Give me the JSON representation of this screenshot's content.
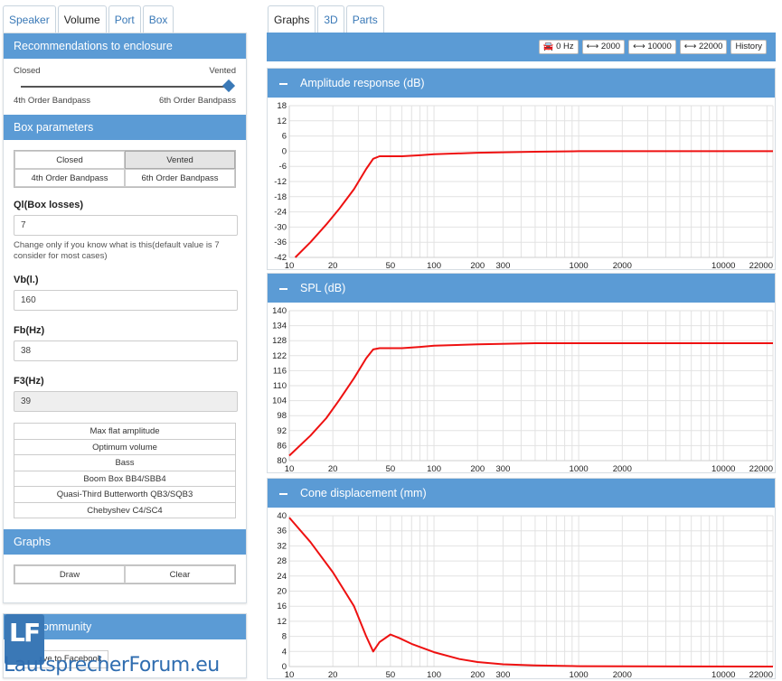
{
  "left_tabs": [
    "Speaker",
    "Volume",
    "Port",
    "Box"
  ],
  "right_tabs": [
    "Graphs",
    "3D",
    "Parts"
  ],
  "recommendations": {
    "title": "Recommendations to enclosure",
    "left_top": "Closed",
    "right_top": "Vented",
    "left_bottom": "4th Order Bandpass",
    "right_bottom": "6th Order Bandpass"
  },
  "box_parameters": {
    "title": "Box parameters",
    "types": [
      "Closed",
      "Vented",
      "4th Order Bandpass",
      "6th Order Bandpass"
    ],
    "selected": "Vented",
    "ql_label": "Ql(Box losses)",
    "ql_value": "7",
    "ql_help": "Change only if you know what is this(default value is 7 consider for most cases)",
    "vb_label": "Vb(l.)",
    "vb_value": "160",
    "fb_label": "Fb(Hz)",
    "fb_value": "38",
    "f3_label": "F3(Hz)",
    "f3_value": "39",
    "alignments": [
      "Max flat amplitude",
      "Optimum volume",
      "Bass",
      "Boom Box BB4/SBB4",
      "Quasi-Third Butterworth QB3/SQB3",
      "Chebyshev C4/SC4"
    ]
  },
  "graphs_panel": {
    "title": "Graphs",
    "draw": "Draw",
    "clear": "Clear"
  },
  "community": {
    "title": "Community",
    "facebook": "Save to Facebook"
  },
  "logo": {
    "letters": "LF",
    "text": "LautsprecherForum.eu"
  },
  "toolbar": {
    "buttons": [
      "🚘 0 Hz",
      "⟷ 2000",
      "⟷ 10000",
      "⟷ 22000",
      "History"
    ]
  },
  "colors": {
    "accent": "#5b9bd5",
    "curve": "#ee1111",
    "link": "#3a79b7"
  },
  "x_tick_labels": [
    "10",
    "20",
    "50",
    "100",
    "200",
    "300",
    "1000",
    "2000",
    "10000",
    "22000"
  ],
  "chart_data": [
    {
      "type": "line",
      "title": "Amplitude response (dB)",
      "xscale": "log",
      "xlim": [
        10,
        22000
      ],
      "ylim": [
        -42,
        18
      ],
      "yticks": [
        18,
        12,
        6,
        0,
        -6,
        -12,
        -18,
        -24,
        -30,
        -36,
        -42
      ],
      "x": [
        11,
        14,
        18,
        22,
        28,
        34,
        38,
        42,
        50,
        60,
        80,
        100,
        200,
        500,
        1000,
        5000,
        22000
      ],
      "values": [
        -42,
        -36,
        -29,
        -23,
        -15,
        -7,
        -3,
        -2,
        -2,
        -2,
        -1.6,
        -1.2,
        -0.6,
        -0.2,
        0,
        0,
        0
      ]
    },
    {
      "type": "line",
      "title": "SPL (dB)",
      "xscale": "log",
      "xlim": [
        10,
        22000
      ],
      "ylim": [
        80,
        140
      ],
      "yticks": [
        140,
        134,
        128,
        122,
        116,
        110,
        104,
        98,
        92,
        86,
        80
      ],
      "x": [
        10,
        14,
        18,
        22,
        28,
        34,
        38,
        42,
        50,
        60,
        80,
        100,
        200,
        500,
        1000,
        5000,
        22000
      ],
      "values": [
        82,
        90,
        97,
        104,
        113,
        121,
        124.5,
        125,
        125,
        125,
        125.5,
        126,
        126.5,
        127,
        127,
        127,
        127
      ]
    },
    {
      "type": "line",
      "title": "Cone displacement (mm)",
      "xscale": "log",
      "xlim": [
        10,
        22000
      ],
      "ylim": [
        0,
        40
      ],
      "yticks": [
        40,
        36,
        32,
        28,
        24,
        20,
        16,
        12,
        8,
        4,
        0
      ],
      "x": [
        10,
        14,
        20,
        28,
        34,
        38,
        42,
        50,
        58,
        70,
        100,
        150,
        200,
        300,
        500,
        1000,
        22000
      ],
      "values": [
        39.5,
        33,
        25,
        16,
        8,
        4,
        6.5,
        8.5,
        7.5,
        6,
        3.8,
        2,
        1.2,
        0.6,
        0.3,
        0.1,
        0
      ]
    }
  ]
}
